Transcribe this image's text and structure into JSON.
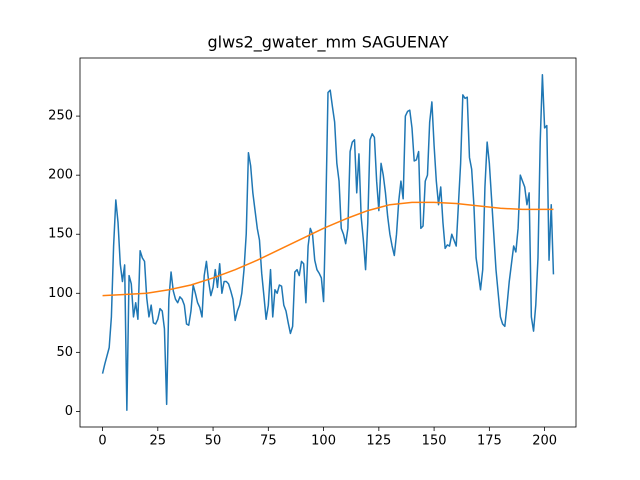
{
  "chart_data": {
    "type": "line",
    "title": "glws2_gwater_mm SAGUENAY",
    "xlim": [
      -10.2,
      214.2
    ],
    "ylim": [
      -13.2,
      299.2
    ],
    "xticks": [
      0,
      25,
      50,
      75,
      100,
      125,
      150,
      175,
      200
    ],
    "yticks": [
      0,
      50,
      100,
      150,
      200,
      250
    ],
    "grid": false,
    "series": [
      {
        "color": "#1f77b4",
        "x": [
          0,
          1,
          2,
          3,
          4,
          5,
          6,
          7,
          8,
          9,
          10,
          11,
          12,
          13,
          14,
          15,
          16,
          17,
          18,
          19,
          20,
          21,
          22,
          23,
          24,
          25,
          26,
          27,
          28,
          29,
          30,
          31,
          32,
          33,
          34,
          35,
          36,
          37,
          38,
          39,
          40,
          41,
          42,
          43,
          44,
          45,
          46,
          47,
          48,
          49,
          50,
          51,
          52,
          53,
          54,
          55,
          56,
          57,
          58,
          59,
          60,
          61,
          62,
          63,
          64,
          65,
          66,
          67,
          68,
          69,
          70,
          71,
          72,
          73,
          74,
          75,
          76,
          77,
          78,
          79,
          80,
          81,
          82,
          83,
          84,
          85,
          86,
          87,
          88,
          89,
          90,
          91,
          92,
          93,
          94,
          95,
          96,
          97,
          98,
          99,
          100,
          101,
          102,
          103,
          104,
          105,
          106,
          107,
          108,
          109,
          110,
          111,
          112,
          113,
          114,
          115,
          116,
          117,
          118,
          119,
          120,
          121,
          122,
          123,
          124,
          125,
          126,
          127,
          128,
          129,
          130,
          131,
          132,
          133,
          134,
          135,
          136,
          137,
          138,
          139,
          140,
          141,
          142,
          143,
          144,
          145,
          146,
          147,
          148,
          149,
          150,
          151,
          152,
          153,
          154,
          155,
          156,
          157,
          158,
          159,
          160,
          161,
          162,
          163,
          164,
          165,
          166,
          167,
          168,
          169,
          170,
          171,
          172,
          173,
          174,
          175,
          176,
          177,
          178,
          179,
          180,
          181,
          182,
          183,
          184,
          185,
          186,
          187,
          188,
          189,
          190,
          191,
          192,
          193,
          194,
          195,
          196,
          197,
          198,
          199,
          200,
          201,
          202,
          203,
          204
        ],
        "values": [
          32,
          40,
          47,
          54,
          80,
          140,
          179,
          160,
          125,
          110,
          124,
          1,
          115,
          108,
          80,
          92,
          78,
          136,
          130,
          127,
          96,
          80,
          90,
          75,
          74,
          78,
          87,
          85,
          70,
          6,
          95,
          118,
          102,
          95,
          92,
          97,
          95,
          90,
          74,
          73,
          85,
          107,
          100,
          92,
          88,
          80,
          115,
          127,
          110,
          98,
          105,
          120,
          105,
          125,
          100,
          110,
          110,
          108,
          102,
          95,
          77,
          85,
          90,
          100,
          120,
          150,
          219,
          208,
          185,
          170,
          155,
          145,
          117,
          98,
          78,
          90,
          120,
          80,
          103,
          100,
          107,
          106,
          90,
          85,
          75,
          66,
          72,
          118,
          120,
          115,
          127,
          125,
          92,
          140,
          155,
          150,
          128,
          120,
          117,
          113,
          93,
          170,
          270,
          272,
          258,
          245,
          210,
          195,
          155,
          150,
          142,
          155,
          220,
          228,
          230,
          185,
          218,
          165,
          145,
          120,
          160,
          230,
          235,
          232,
          195,
          170,
          210,
          200,
          185,
          165,
          150,
          140,
          132,
          150,
          178,
          195,
          180,
          250,
          254,
          255,
          240,
          212,
          213,
          220,
          155,
          157,
          195,
          200,
          245,
          262,
          225,
          195,
          175,
          190,
          160,
          138,
          141,
          140,
          150,
          145,
          140,
          175,
          210,
          268,
          265,
          266,
          215,
          205,
          175,
          130,
          117,
          103,
          120,
          190,
          228,
          210,
          180,
          150,
          120,
          100,
          80,
          74,
          72,
          90,
          110,
          125,
          140,
          135,
          155,
          200,
          195,
          190,
          175,
          185,
          80,
          68,
          90,
          130,
          228,
          285,
          240,
          242,
          128,
          175,
          116
        ]
      },
      {
        "color": "#ff7f0e",
        "x": [
          0,
          10,
          20,
          30,
          40,
          50,
          60,
          70,
          80,
          90,
          100,
          110,
          120,
          130,
          140,
          150,
          160,
          170,
          180,
          190,
          200,
          204
        ],
        "values": [
          98,
          99,
          100,
          103,
          107,
          113,
          120,
          128,
          137,
          146,
          155,
          163,
          170,
          175,
          177,
          177,
          176,
          174,
          172,
          171,
          171,
          171
        ]
      }
    ]
  }
}
